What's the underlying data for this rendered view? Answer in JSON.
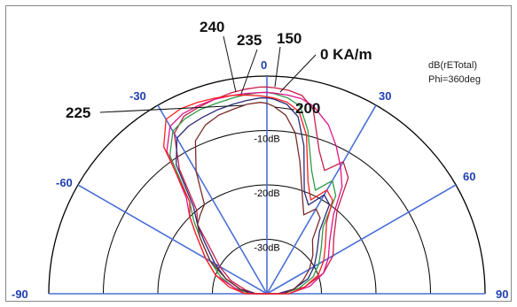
{
  "chart_data": {
    "type": "polar",
    "unit_text": "dB(rETotal)",
    "phi_text": "Phi=360deg",
    "angle_labels": [
      "-90",
      "-60",
      "-30",
      "0",
      "30",
      "60",
      "90"
    ],
    "angle_values": [
      -90,
      -60,
      -30,
      0,
      30,
      60,
      90
    ],
    "ring_labels": [
      "-10dB",
      "-20dB",
      "-30dB"
    ],
    "ring_values": [
      -10,
      -20,
      -30
    ],
    "r_range_db": [
      -40,
      0
    ],
    "curve_labels": [
      "240",
      "235",
      "150",
      "0 KA/m",
      "225",
      "200"
    ],
    "colors": {
      "axis": "#4a6fd8",
      "angle_label": "#1f3fb0",
      "grid": "#000000"
    },
    "series": [
      {
        "name": "0 KA/m",
        "color": "#c61f4b",
        "theta_deg": [
          -90,
          -80,
          -70,
          -60,
          -50,
          -45,
          -40,
          -35,
          -30,
          -25,
          -20,
          -15,
          -10,
          -6,
          -2,
          0,
          2,
          6,
          10,
          14,
          20,
          25,
          30,
          35,
          40,
          50,
          60,
          70,
          80,
          90
        ],
        "r_db": [
          -38,
          -36,
          -33,
          -30,
          -26,
          -22,
          -20,
          -12,
          -6,
          -4,
          -3.5,
          -3,
          -2.5,
          -2.2,
          -2,
          -2,
          -2.1,
          -2.4,
          -3,
          -5,
          -12,
          -15,
          -12,
          -14,
          -20,
          -24,
          -26,
          -29,
          -33,
          -38
        ]
      },
      {
        "name": "150",
        "color": "#2f9a45",
        "theta_deg": [
          -90,
          -80,
          -70,
          -60,
          -50,
          -45,
          -40,
          -35,
          -30,
          -25,
          -20,
          -15,
          -10,
          -6,
          -2,
          0,
          2,
          6,
          10,
          14,
          20,
          25,
          30,
          35,
          40,
          50,
          60,
          70,
          80,
          90
        ],
        "r_db": [
          -37,
          -34,
          -31,
          -28,
          -24,
          -21,
          -18,
          -9,
          -5.5,
          -4.5,
          -4,
          -3.8,
          -3.5,
          -3.2,
          -3,
          -3,
          -3.2,
          -3.8,
          -5,
          -9,
          -16,
          -19,
          -16,
          -18,
          -24,
          -27,
          -29,
          -31,
          -34,
          -37
        ]
      },
      {
        "name": "200",
        "color": "#2a2a7a",
        "theta_deg": [
          -90,
          -80,
          -70,
          -60,
          -50,
          -45,
          -40,
          -35,
          -30,
          -25,
          -20,
          -15,
          -10,
          -6,
          -2,
          0,
          2,
          6,
          10,
          14,
          20,
          25,
          30,
          35,
          40,
          50,
          60,
          70,
          80,
          90
        ],
        "r_db": [
          -38,
          -35,
          -32,
          -29,
          -25,
          -22,
          -19,
          -11,
          -7,
          -6,
          -5.5,
          -5,
          -4.6,
          -4.3,
          -4,
          -4,
          -4.2,
          -5,
          -7,
          -12,
          -20,
          -22,
          -19,
          -20,
          -25,
          -28,
          -30,
          -32,
          -35,
          -38
        ]
      },
      {
        "name": "225",
        "color": "#7a2a2a",
        "theta_deg": [
          -90,
          -80,
          -70,
          -60,
          -50,
          -45,
          -40,
          -35,
          -30,
          -25,
          -20,
          -15,
          -10,
          -6,
          -2,
          0,
          2,
          6,
          10,
          14,
          20,
          25,
          30,
          35,
          40,
          50,
          60,
          70,
          80,
          90
        ],
        "r_db": [
          -37,
          -35,
          -32,
          -28,
          -24,
          -22,
          -21,
          -20,
          -14,
          -9,
          -7,
          -6,
          -5.5,
          -5,
          -4.8,
          -5,
          -5.5,
          -7,
          -10,
          -15,
          -21,
          -24,
          -22,
          -23,
          -27,
          -29,
          -31,
          -33,
          -35,
          -37
        ]
      },
      {
        "name": "235",
        "color": "#e0138a",
        "theta_deg": [
          -90,
          -80,
          -70,
          -60,
          -50,
          -45,
          -40,
          -35,
          -30,
          -25,
          -20,
          -15,
          -10,
          -6,
          -2,
          0,
          2,
          6,
          10,
          14,
          20,
          25,
          30,
          35,
          40,
          50,
          60,
          70,
          80,
          90
        ],
        "r_db": [
          -36,
          -34,
          -30,
          -27,
          -23,
          -20,
          -17,
          -8,
          -4.5,
          -3.5,
          -3.2,
          -3,
          -3,
          -3,
          -3,
          -3,
          -3.1,
          -3.3,
          -3.6,
          -4.5,
          -7,
          -10,
          -13,
          -16,
          -21,
          -25,
          -27,
          -29,
          -32,
          -36
        ]
      },
      {
        "name": "240",
        "color": "#ff2020",
        "theta_deg": [
          -90,
          -80,
          -70,
          -60,
          -50,
          -45,
          -40,
          -35,
          -30,
          -25,
          -20,
          -15,
          -10,
          -6,
          -2,
          0,
          2,
          6,
          10,
          14,
          20,
          25,
          30,
          35,
          40,
          50,
          60,
          70,
          80,
          90
        ],
        "r_db": [
          -36,
          -33,
          -30,
          -27,
          -23,
          -20,
          -18,
          -7,
          -3,
          -2.5,
          -2.6,
          -2.8,
          -3,
          -3.3,
          -3.6,
          -3.8,
          -4,
          -4.6,
          -6,
          -10,
          -18,
          -21,
          -18,
          -19,
          -23,
          -26,
          -28,
          -30,
          -33,
          -36
        ]
      }
    ]
  }
}
